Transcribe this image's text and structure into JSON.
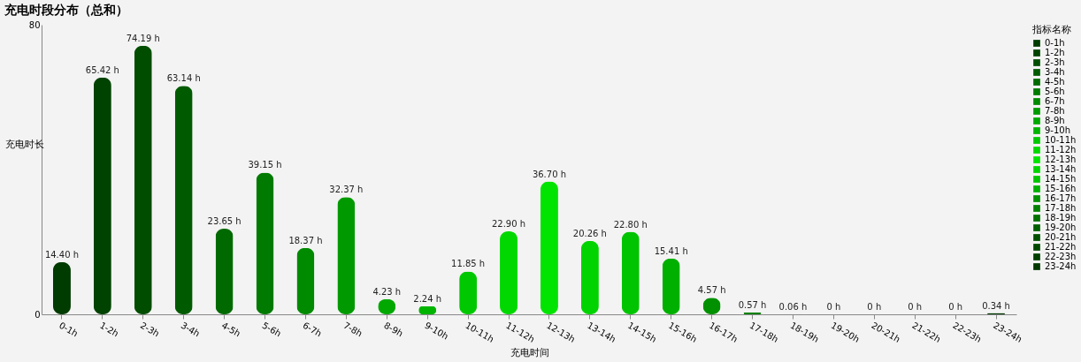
{
  "chart_data": {
    "type": "bar",
    "stacked": true,
    "title": "充电时段分布（总和）",
    "xlabel": "充电时间",
    "ylabel": "充电时长",
    "legend_title": "指标名称",
    "legend": "right",
    "grid": false,
    "categories": [
      "0-1h",
      "1-2h",
      "2-3h",
      "3-4h",
      "4-5h",
      "5-6h",
      "6-7h",
      "7-8h",
      "8-9h",
      "9-10h",
      "10-11h",
      "11-12h",
      "12-13h",
      "13-14h",
      "14-15h",
      "15-16h",
      "16-17h",
      "17-18h",
      "18-19h",
      "19-20h",
      "20-21h",
      "21-22h",
      "22-23h",
      "23-24h"
    ],
    "series": [
      {
        "name": "0-1h",
        "color": "#003b00",
        "values": [
          14.4,
          null,
          null,
          null,
          null,
          null,
          null,
          null,
          null,
          null,
          null,
          null,
          null,
          null,
          null,
          null,
          null,
          null,
          null,
          null,
          null,
          null,
          null,
          null
        ],
        "value_labels": [
          "14.40 h",
          null,
          null,
          null,
          null,
          null,
          null,
          null,
          null,
          null,
          null,
          null,
          null,
          null,
          null,
          null,
          null,
          null,
          null,
          null,
          null,
          null,
          null,
          null
        ]
      },
      {
        "name": "1-2h",
        "color": "#004200",
        "values": [
          null,
          65.42,
          null,
          null,
          null,
          null,
          null,
          null,
          null,
          null,
          null,
          null,
          null,
          null,
          null,
          null,
          null,
          null,
          null,
          null,
          null,
          null,
          null,
          null
        ],
        "value_labels": [
          null,
          "65.42 h",
          null,
          null,
          null,
          null,
          null,
          null,
          null,
          null,
          null,
          null,
          null,
          null,
          null,
          null,
          null,
          null,
          null,
          null,
          null,
          null,
          null,
          null
        ]
      },
      {
        "name": "2-3h",
        "color": "#004d00",
        "values": [
          null,
          null,
          74.19,
          null,
          null,
          null,
          null,
          null,
          null,
          null,
          null,
          null,
          null,
          null,
          null,
          null,
          null,
          null,
          null,
          null,
          null,
          null,
          null,
          null
        ],
        "value_labels": [
          null,
          null,
          "74.19 h",
          null,
          null,
          null,
          null,
          null,
          null,
          null,
          null,
          null,
          null,
          null,
          null,
          null,
          null,
          null,
          null,
          null,
          null,
          null,
          null,
          null
        ]
      },
      {
        "name": "3-4h",
        "color": "#005a00",
        "values": [
          null,
          null,
          null,
          63.14,
          null,
          null,
          null,
          null,
          null,
          null,
          null,
          null,
          null,
          null,
          null,
          null,
          null,
          null,
          null,
          null,
          null,
          null,
          null,
          null
        ],
        "value_labels": [
          null,
          null,
          null,
          "63.14 h",
          null,
          null,
          null,
          null,
          null,
          null,
          null,
          null,
          null,
          null,
          null,
          null,
          null,
          null,
          null,
          null,
          null,
          null,
          null,
          null
        ]
      },
      {
        "name": "4-5h",
        "color": "#006a00",
        "values": [
          null,
          null,
          null,
          null,
          23.65,
          null,
          null,
          null,
          null,
          null,
          null,
          null,
          null,
          null,
          null,
          null,
          null,
          null,
          null,
          null,
          null,
          null,
          null,
          null
        ],
        "value_labels": [
          null,
          null,
          null,
          null,
          "23.65 h",
          null,
          null,
          null,
          null,
          null,
          null,
          null,
          null,
          null,
          null,
          null,
          null,
          null,
          null,
          null,
          null,
          null,
          null,
          null
        ]
      },
      {
        "name": "5-6h",
        "color": "#007a00",
        "values": [
          null,
          null,
          null,
          null,
          null,
          39.15,
          null,
          null,
          null,
          null,
          null,
          null,
          null,
          null,
          null,
          null,
          null,
          null,
          null,
          null,
          null,
          null,
          null,
          null
        ],
        "value_labels": [
          null,
          null,
          null,
          null,
          null,
          "39.15 h",
          null,
          null,
          null,
          null,
          null,
          null,
          null,
          null,
          null,
          null,
          null,
          null,
          null,
          null,
          null,
          null,
          null,
          null
        ]
      },
      {
        "name": "6-7h",
        "color": "#008a00",
        "values": [
          null,
          null,
          null,
          null,
          null,
          null,
          18.37,
          null,
          null,
          null,
          null,
          null,
          null,
          null,
          null,
          null,
          null,
          null,
          null,
          null,
          null,
          null,
          null,
          null
        ],
        "value_labels": [
          null,
          null,
          null,
          null,
          null,
          null,
          "18.37 h",
          null,
          null,
          null,
          null,
          null,
          null,
          null,
          null,
          null,
          null,
          null,
          null,
          null,
          null,
          null,
          null,
          null
        ]
      },
      {
        "name": "7-8h",
        "color": "#009a00",
        "values": [
          null,
          null,
          null,
          null,
          null,
          null,
          null,
          32.37,
          null,
          null,
          null,
          null,
          null,
          null,
          null,
          null,
          null,
          null,
          null,
          null,
          null,
          null,
          null,
          null
        ],
        "value_labels": [
          null,
          null,
          null,
          null,
          null,
          null,
          null,
          "32.37 h",
          null,
          null,
          null,
          null,
          null,
          null,
          null,
          null,
          null,
          null,
          null,
          null,
          null,
          null,
          null,
          null
        ]
      },
      {
        "name": "8-9h",
        "color": "#00a800",
        "values": [
          null,
          null,
          null,
          null,
          null,
          null,
          null,
          null,
          4.23,
          null,
          null,
          null,
          null,
          null,
          null,
          null,
          null,
          null,
          null,
          null,
          null,
          null,
          null,
          null
        ],
        "value_labels": [
          null,
          null,
          null,
          null,
          null,
          null,
          null,
          null,
          "4.23 h",
          null,
          null,
          null,
          null,
          null,
          null,
          null,
          null,
          null,
          null,
          null,
          null,
          null,
          null,
          null
        ]
      },
      {
        "name": "9-10h",
        "color": "#00b400",
        "values": [
          null,
          null,
          null,
          null,
          null,
          null,
          null,
          null,
          null,
          2.24,
          null,
          null,
          null,
          null,
          null,
          null,
          null,
          null,
          null,
          null,
          null,
          null,
          null,
          null
        ],
        "value_labels": [
          null,
          null,
          null,
          null,
          null,
          null,
          null,
          null,
          null,
          "2.24 h",
          null,
          null,
          null,
          null,
          null,
          null,
          null,
          null,
          null,
          null,
          null,
          null,
          null,
          null
        ]
      },
      {
        "name": "10-11h",
        "color": "#00c800",
        "values": [
          null,
          null,
          null,
          null,
          null,
          null,
          null,
          null,
          null,
          null,
          11.85,
          null,
          null,
          null,
          null,
          null,
          null,
          null,
          null,
          null,
          null,
          null,
          null,
          null
        ],
        "value_labels": [
          null,
          null,
          null,
          null,
          null,
          null,
          null,
          null,
          null,
          null,
          "11.85 h",
          null,
          null,
          null,
          null,
          null,
          null,
          null,
          null,
          null,
          null,
          null,
          null,
          null
        ]
      },
      {
        "name": "11-12h",
        "color": "#00d800",
        "values": [
          null,
          null,
          null,
          null,
          null,
          null,
          null,
          null,
          null,
          null,
          null,
          22.9,
          null,
          null,
          null,
          null,
          null,
          null,
          null,
          null,
          null,
          null,
          null,
          null
        ],
        "value_labels": [
          null,
          null,
          null,
          null,
          null,
          null,
          null,
          null,
          null,
          null,
          null,
          "22.90 h",
          null,
          null,
          null,
          null,
          null,
          null,
          null,
          null,
          null,
          null,
          null,
          null
        ]
      },
      {
        "name": "12-13h",
        "color": "#00e400",
        "values": [
          null,
          null,
          null,
          null,
          null,
          null,
          null,
          null,
          null,
          null,
          null,
          null,
          36.7,
          null,
          null,
          null,
          null,
          null,
          null,
          null,
          null,
          null,
          null,
          null
        ],
        "value_labels": [
          null,
          null,
          null,
          null,
          null,
          null,
          null,
          null,
          null,
          null,
          null,
          null,
          "36.70 h",
          null,
          null,
          null,
          null,
          null,
          null,
          null,
          null,
          null,
          null,
          null
        ]
      },
      {
        "name": "13-14h",
        "color": "#00d400",
        "values": [
          null,
          null,
          null,
          null,
          null,
          null,
          null,
          null,
          null,
          null,
          null,
          null,
          null,
          20.26,
          null,
          null,
          null,
          null,
          null,
          null,
          null,
          null,
          null,
          null
        ],
        "value_labels": [
          null,
          null,
          null,
          null,
          null,
          null,
          null,
          null,
          null,
          null,
          null,
          null,
          null,
          "20.26 h",
          null,
          null,
          null,
          null,
          null,
          null,
          null,
          null,
          null,
          null
        ]
      },
      {
        "name": "14-15h",
        "color": "#00c400",
        "values": [
          null,
          null,
          null,
          null,
          null,
          null,
          null,
          null,
          null,
          null,
          null,
          null,
          null,
          null,
          22.8,
          null,
          null,
          null,
          null,
          null,
          null,
          null,
          null,
          null
        ],
        "value_labels": [
          null,
          null,
          null,
          null,
          null,
          null,
          null,
          null,
          null,
          null,
          null,
          null,
          null,
          null,
          "22.80 h",
          null,
          null,
          null,
          null,
          null,
          null,
          null,
          null,
          null
        ]
      },
      {
        "name": "15-16h",
        "color": "#00b000",
        "values": [
          null,
          null,
          null,
          null,
          null,
          null,
          null,
          null,
          null,
          null,
          null,
          null,
          null,
          null,
          null,
          15.41,
          null,
          null,
          null,
          null,
          null,
          null,
          null,
          null
        ],
        "value_labels": [
          null,
          null,
          null,
          null,
          null,
          null,
          null,
          null,
          null,
          null,
          null,
          null,
          null,
          null,
          null,
          "15.41 h",
          null,
          null,
          null,
          null,
          null,
          null,
          null,
          null
        ]
      },
      {
        "name": "16-17h",
        "color": "#009000",
        "values": [
          null,
          null,
          null,
          null,
          null,
          null,
          null,
          null,
          null,
          null,
          null,
          null,
          null,
          null,
          null,
          null,
          4.57,
          null,
          null,
          null,
          null,
          null,
          null,
          null
        ],
        "value_labels": [
          null,
          null,
          null,
          null,
          null,
          null,
          null,
          null,
          null,
          null,
          null,
          null,
          null,
          null,
          null,
          null,
          "4.57 h",
          null,
          null,
          null,
          null,
          null,
          null,
          null
        ]
      },
      {
        "name": "17-18h",
        "color": "#008000",
        "values": [
          null,
          null,
          null,
          null,
          null,
          null,
          null,
          null,
          null,
          null,
          null,
          null,
          null,
          null,
          null,
          null,
          null,
          0.57,
          null,
          null,
          null,
          null,
          null,
          null
        ],
        "value_labels": [
          null,
          null,
          null,
          null,
          null,
          null,
          null,
          null,
          null,
          null,
          null,
          null,
          null,
          null,
          null,
          null,
          null,
          "0.57 h",
          null,
          null,
          null,
          null,
          null,
          null
        ]
      },
      {
        "name": "18-19h",
        "color": "#007000",
        "values": [
          null,
          null,
          null,
          null,
          null,
          null,
          null,
          null,
          null,
          null,
          null,
          null,
          null,
          null,
          null,
          null,
          null,
          null,
          0.06,
          null,
          null,
          null,
          null,
          null
        ],
        "value_labels": [
          null,
          null,
          null,
          null,
          null,
          null,
          null,
          null,
          null,
          null,
          null,
          null,
          null,
          null,
          null,
          null,
          null,
          null,
          "0.06 h",
          null,
          null,
          null,
          null,
          null
        ]
      },
      {
        "name": "19-20h",
        "color": "#006000",
        "values": [
          null,
          null,
          null,
          null,
          null,
          null,
          null,
          null,
          null,
          null,
          null,
          null,
          null,
          null,
          null,
          null,
          null,
          null,
          null,
          0,
          null,
          null,
          null,
          null
        ],
        "value_labels": [
          null,
          null,
          null,
          null,
          null,
          null,
          null,
          null,
          null,
          null,
          null,
          null,
          null,
          null,
          null,
          null,
          null,
          null,
          null,
          "0 h",
          null,
          null,
          null,
          null
        ]
      },
      {
        "name": "20-21h",
        "color": "#005000",
        "values": [
          null,
          null,
          null,
          null,
          null,
          null,
          null,
          null,
          null,
          null,
          null,
          null,
          null,
          null,
          null,
          null,
          null,
          null,
          null,
          null,
          0,
          null,
          null,
          null
        ],
        "value_labels": [
          null,
          null,
          null,
          null,
          null,
          null,
          null,
          null,
          null,
          null,
          null,
          null,
          null,
          null,
          null,
          null,
          null,
          null,
          null,
          null,
          "0 h",
          null,
          null,
          null
        ]
      },
      {
        "name": "21-22h",
        "color": "#004800",
        "values": [
          null,
          null,
          null,
          null,
          null,
          null,
          null,
          null,
          null,
          null,
          null,
          null,
          null,
          null,
          null,
          null,
          null,
          null,
          null,
          null,
          null,
          0,
          null,
          null
        ],
        "value_labels": [
          null,
          null,
          null,
          null,
          null,
          null,
          null,
          null,
          null,
          null,
          null,
          null,
          null,
          null,
          null,
          null,
          null,
          null,
          null,
          null,
          null,
          "0 h",
          null,
          null
        ]
      },
      {
        "name": "22-23h",
        "color": "#004000",
        "values": [
          null,
          null,
          null,
          null,
          null,
          null,
          null,
          null,
          null,
          null,
          null,
          null,
          null,
          null,
          null,
          null,
          null,
          null,
          null,
          null,
          null,
          null,
          0,
          null
        ],
        "value_labels": [
          null,
          null,
          null,
          null,
          null,
          null,
          null,
          null,
          null,
          null,
          null,
          null,
          null,
          null,
          null,
          null,
          null,
          null,
          null,
          null,
          null,
          null,
          "0 h",
          null
        ]
      },
      {
        "name": "23-24h",
        "color": "#003800",
        "values": [
          null,
          null,
          null,
          null,
          null,
          null,
          null,
          null,
          null,
          null,
          null,
          null,
          null,
          null,
          null,
          null,
          null,
          null,
          null,
          null,
          null,
          null,
          null,
          0.34
        ],
        "value_labels": [
          null,
          null,
          null,
          null,
          null,
          null,
          null,
          null,
          null,
          null,
          null,
          null,
          null,
          null,
          null,
          null,
          null,
          null,
          null,
          null,
          null,
          null,
          null,
          "0.34 h"
        ]
      }
    ],
    "ylim": [
      0,
      80
    ],
    "yticks": [
      0,
      80
    ]
  }
}
